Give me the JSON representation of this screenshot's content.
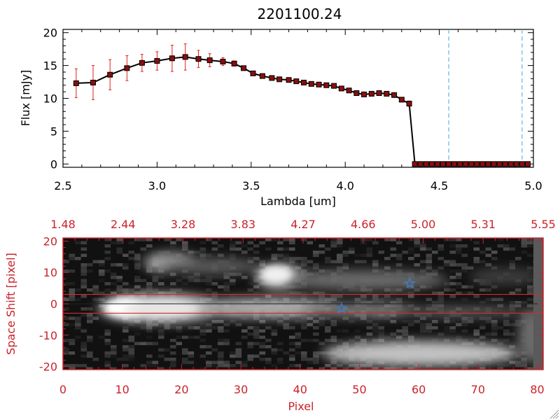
{
  "colors": {
    "axis_black": "#000000",
    "axis_red": "#c8232c",
    "marker_fill": "#8b0d0d",
    "errorbar": "#e0201b",
    "dashed_line": "#49a6d8",
    "star": "#3a7fd0",
    "trace_box": "#d42a2a"
  },
  "chart_data": [
    {
      "type": "line",
      "title": "2201100.24",
      "xlabel": "Lambda [um]",
      "ylabel": "Flux [mJy]",
      "xlim": [
        2.5,
        5.0
      ],
      "ylim": [
        -0.5,
        20.5
      ],
      "xticks": [
        "2.5",
        "3.0",
        "3.5",
        "4.0",
        "4.5",
        "5.0"
      ],
      "xtick_values": [
        2.5,
        3.0,
        3.5,
        4.0,
        4.5,
        5.0
      ],
      "yticks": [
        "0",
        "5",
        "10",
        "15",
        "20"
      ],
      "ytick_values": [
        0,
        5,
        10,
        15,
        20
      ],
      "vlines": [
        4.55,
        4.94
      ],
      "series": [
        {
          "x": [
            2.57,
            2.66,
            2.75,
            2.84,
            2.92,
            3.0,
            3.08,
            3.15,
            3.22,
            3.28,
            3.35,
            3.41,
            3.46,
            3.51,
            3.56,
            3.61,
            3.65,
            3.7,
            3.74,
            3.78,
            3.82,
            3.86,
            3.9,
            3.94,
            3.98,
            4.02,
            4.06,
            4.1,
            4.14,
            4.18,
            4.22,
            4.26,
            4.3,
            4.34,
            4.37,
            4.4,
            4.43,
            4.46,
            4.49,
            4.52,
            4.55,
            4.58,
            4.61,
            4.64,
            4.67,
            4.7,
            4.73,
            4.76,
            4.79,
            4.82,
            4.85,
            4.88,
            4.91,
            4.94,
            4.97
          ],
          "y": [
            12.3,
            12.4,
            13.6,
            14.6,
            15.4,
            15.7,
            16.1,
            16.3,
            16.0,
            15.8,
            15.6,
            15.3,
            14.6,
            13.8,
            13.4,
            13.1,
            12.9,
            12.8,
            12.6,
            12.4,
            12.2,
            12.1,
            12.0,
            11.9,
            11.5,
            11.2,
            10.8,
            10.6,
            10.7,
            10.8,
            10.7,
            10.5,
            9.8,
            9.2,
            0,
            0,
            0,
            0,
            0,
            0,
            0,
            0,
            0,
            0,
            0,
            0,
            0,
            0,
            0,
            0,
            0,
            0,
            0,
            0,
            0
          ],
          "yerr": [
            2.2,
            2.6,
            2.3,
            1.9,
            1.3,
            1.4,
            2.0,
            2.0,
            1.3,
            1.0,
            0.6,
            0.4,
            0.3,
            0.3,
            0.2,
            0.2,
            0.2,
            0.2,
            0.2,
            0.2,
            0.2,
            0.2,
            0.2,
            0.2,
            0.2,
            0.2,
            0.2,
            0.2,
            0.2,
            0.2,
            0.2,
            0.2,
            0.3,
            0.4,
            0,
            0,
            0,
            0,
            0,
            0,
            0,
            0,
            0,
            0,
            0,
            0,
            0,
            0,
            0,
            0,
            0,
            0,
            0,
            0,
            0
          ]
        }
      ]
    },
    {
      "type": "heatmap",
      "xlabel": "Pixel",
      "ylabel": "Space Shift [pixel]",
      "xlim": [
        0,
        81
      ],
      "ylim": [
        -21,
        21
      ],
      "xticks": [
        "0",
        "10",
        "20",
        "30",
        "40",
        "50",
        "60",
        "70",
        "80"
      ],
      "xtick_values": [
        0,
        10,
        20,
        30,
        40,
        50,
        60,
        70,
        80
      ],
      "yticks": [
        "-20",
        "-10",
        "0",
        "10",
        "20"
      ],
      "ytick_values": [
        -20,
        -10,
        0,
        10,
        20
      ],
      "top_axis_labels": [
        "1.48",
        "2.44",
        "3.28",
        "3.83",
        "4.27",
        "4.66",
        "5.00",
        "5.31",
        "5.55"
      ],
      "trace_center": 0,
      "trace_halfwidth": 3,
      "stars": [
        {
          "x": 47,
          "y": -1.5
        },
        {
          "x": 58.5,
          "y": 6.5
        }
      ]
    }
  ]
}
